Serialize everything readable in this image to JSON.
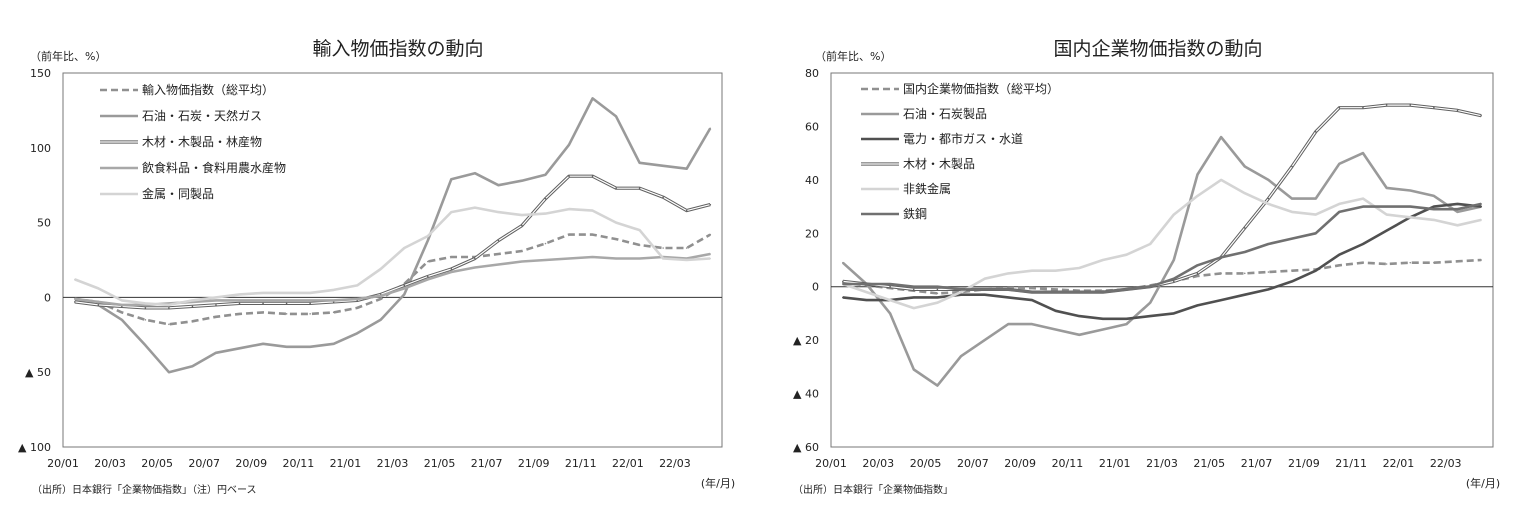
{
  "chart_data": [
    {
      "type": "line",
      "title": "輸入物価指数の動向",
      "ylabel": "（前年比、%）",
      "xlabel": "(年/月)",
      "source": "（出所）日本銀行「企業物価指数」（注）円ベース",
      "ylim": [
        -100,
        150
      ],
      "yticks": [
        150,
        100,
        50,
        0,
        -50,
        -100
      ],
      "ytick_labels": [
        "150",
        "100",
        "50",
        "0",
        "▲ 50",
        "▲ 100"
      ],
      "x": [
        "20/01",
        "20/02",
        "20/03",
        "20/04",
        "20/05",
        "20/06",
        "20/07",
        "20/08",
        "20/09",
        "20/10",
        "20/11",
        "20/12",
        "21/01",
        "21/02",
        "21/03",
        "21/04",
        "21/05",
        "21/06",
        "21/07",
        "21/08",
        "21/09",
        "21/10",
        "21/11",
        "21/12",
        "22/01",
        "22/02",
        "22/03",
        "22/04"
      ],
      "xtick_labels": [
        "20/01",
        "20/03",
        "20/05",
        "20/07",
        "20/09",
        "20/11",
        "21/01",
        "21/03",
        "21/05",
        "21/07",
        "21/09",
        "21/11",
        "22/01",
        "22/03"
      ],
      "grid": false,
      "legend": "top-left",
      "series": [
        {
          "name": "輸入物価指数（総平均）",
          "color": "#909090",
          "dash": true,
          "values": [
            -1,
            -3,
            -10,
            -15,
            -18,
            -16,
            -13,
            -11,
            -10,
            -11,
            -11,
            -10,
            -7,
            -1,
            9,
            24,
            27,
            27,
            29,
            31,
            36,
            42,
            42,
            39,
            35,
            33,
            33,
            42
          ]
        },
        {
          "name": "石油・石炭・天然ガス",
          "color": "#9a9a9a",
          "dash": false,
          "values": [
            -1,
            -5,
            -15,
            -32,
            -50,
            -46,
            -37,
            -34,
            -31,
            -33,
            -33,
            -31,
            -24,
            -15,
            2,
            38,
            79,
            83,
            75,
            78,
            82,
            102,
            133,
            121,
            90,
            88,
            86,
            113
          ]
        },
        {
          "name": "木材・木製品・林産物",
          "color": "#606060",
          "dash": false,
          "double": true,
          "values": [
            -3,
            -5,
            -6,
            -7,
            -7,
            -6,
            -5,
            -4,
            -4,
            -4,
            -4,
            -3,
            -2,
            2,
            8,
            14,
            19,
            26,
            38,
            48,
            66,
            81,
            81,
            73,
            73,
            67,
            58,
            62
          ]
        },
        {
          "name": "飲食料品・食料用農水産物",
          "color": "#a8a8a8",
          "dash": false,
          "values": [
            -1,
            -3,
            -5,
            -5,
            -4,
            -3,
            -2,
            -2,
            -2,
            -2,
            -2,
            -2,
            -1,
            1,
            6,
            12,
            17,
            20,
            22,
            24,
            25,
            26,
            27,
            26,
            26,
            27,
            26,
            29
          ]
        },
        {
          "name": "金属・同製品",
          "color": "#d4d4d4",
          "dash": false,
          "values": [
            12,
            6,
            -2,
            -4,
            -5,
            -2,
            0,
            2,
            3,
            3,
            3,
            5,
            8,
            19,
            33,
            41,
            57,
            60,
            57,
            55,
            56,
            59,
            58,
            50,
            45,
            26,
            25,
            26
          ]
        }
      ]
    },
    {
      "type": "line",
      "title": "国内企業物価指数の動向",
      "ylabel": "（前年比、%）",
      "xlabel": "(年/月)",
      "source": "（出所）日本銀行「企業物価指数」",
      "ylim": [
        -60,
        80
      ],
      "yticks": [
        80,
        60,
        40,
        20,
        0,
        -20,
        -40,
        -60
      ],
      "ytick_labels": [
        "80",
        "60",
        "40",
        "20",
        "0",
        "▲ 20",
        "▲ 40",
        "▲ 60"
      ],
      "x": [
        "20/01",
        "20/02",
        "20/03",
        "20/04",
        "20/05",
        "20/06",
        "20/07",
        "20/08",
        "20/09",
        "20/10",
        "20/11",
        "20/12",
        "21/01",
        "21/02",
        "21/03",
        "21/04",
        "21/05",
        "21/06",
        "21/07",
        "21/08",
        "21/09",
        "21/10",
        "21/11",
        "21/12",
        "22/01",
        "22/02",
        "22/03",
        "22/04"
      ],
      "xtick_labels": [
        "20/01",
        "20/03",
        "20/05",
        "20/07",
        "20/09",
        "20/11",
        "21/01",
        "21/03",
        "21/05",
        "21/07",
        "21/09",
        "21/11",
        "22/01",
        "22/03"
      ],
      "grid": false,
      "legend": "top-left",
      "series": [
        {
          "name": "国内企業物価指数（総平均）",
          "color": "#909090",
          "dash": true,
          "values": [
            1.5,
            0.5,
            -0.5,
            -1.5,
            -2.5,
            -2,
            -1,
            -0.5,
            -0.5,
            -1,
            -1.5,
            -1.5,
            -1,
            0.5,
            2,
            4,
            5,
            5,
            5.5,
            6,
            6.5,
            8,
            9,
            8.5,
            9,
            9,
            9.5,
            10
          ]
        },
        {
          "name": "石油・石炭製品",
          "color": "#9a9a9a",
          "dash": false,
          "values": [
            9,
            1,
            -10,
            -31,
            -37,
            -26,
            -20,
            -14,
            -14,
            -16,
            -18,
            -16,
            -14,
            -6,
            10,
            42,
            56,
            45,
            40,
            33,
            33,
            46,
            50,
            37,
            36,
            34,
            28,
            30
          ]
        },
        {
          "name": "電力・都市ガス・水道",
          "color": "#505050",
          "dash": false,
          "values": [
            -4,
            -5,
            -5,
            -4,
            -4,
            -3,
            -3,
            -4,
            -5,
            -9,
            -11,
            -12,
            -12,
            -11,
            -10,
            -7,
            -5,
            -3,
            -1,
            2,
            6,
            12,
            16,
            21,
            26,
            30,
            31,
            30
          ]
        },
        {
          "name": "木材・木製品",
          "color": "#606060",
          "dash": false,
          "double": true,
          "values": [
            2,
            1,
            0,
            -1,
            -1,
            -1,
            -1,
            -1,
            -2,
            -2,
            -2,
            -2,
            -1,
            0,
            2,
            5,
            11,
            22,
            33,
            45,
            58,
            67,
            67,
            68,
            68,
            67,
            66,
            64
          ]
        },
        {
          "name": "非鉄金属",
          "color": "#d4d4d4",
          "dash": false,
          "values": [
            1,
            -2,
            -5,
            -8,
            -6,
            -2,
            3,
            5,
            6,
            6,
            7,
            10,
            12,
            16,
            27,
            34,
            40,
            35,
            31,
            28,
            27,
            31,
            33,
            27,
            26,
            25,
            23,
            25
          ]
        },
        {
          "name": "鉄鋼",
          "color": "#707070",
          "dash": false,
          "values": [
            1,
            1,
            1,
            0,
            0,
            -1,
            -1,
            -1,
            -2,
            -2,
            -2,
            -2,
            -1,
            0,
            3,
            8,
            11,
            13,
            16,
            18,
            20,
            28,
            30,
            30,
            30,
            29,
            29,
            31
          ]
        }
      ]
    }
  ]
}
